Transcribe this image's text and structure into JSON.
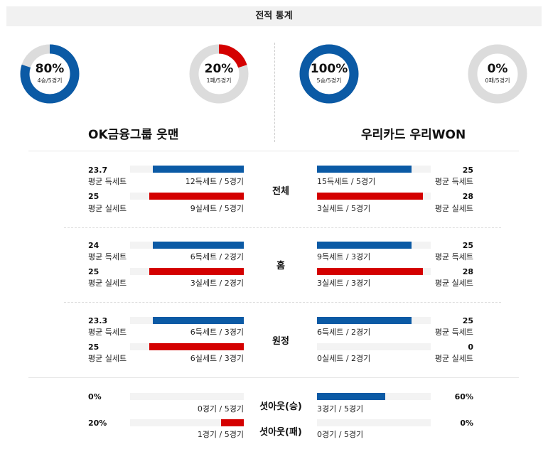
{
  "title": "전적 통계",
  "colors": {
    "blue": "#0b5aa5",
    "red": "#d40000",
    "track": "#dcdcdc"
  },
  "donuts": [
    {
      "pct": "80%",
      "sub": "4승/5경기",
      "fraction": 0.8,
      "color": "#0b5aa5"
    },
    {
      "pct": "20%",
      "sub": "1패/5경기",
      "fraction": 0.2,
      "color": "#d40000"
    },
    {
      "pct": "100%",
      "sub": "5승/5경기",
      "fraction": 1.0,
      "color": "#0b5aa5"
    },
    {
      "pct": "0%",
      "sub": "0패/5경기",
      "fraction": 0.0,
      "color": "#d40000"
    }
  ],
  "teams": {
    "home": "OK금융그룹 읏맨",
    "away": "우리카드 우리WON"
  },
  "sections": [
    {
      "label": "전체",
      "rows": [
        {
          "left_val": "23.7",
          "left_lbl": "평균 득세트",
          "left_cap": "12득세트 / 5경기",
          "left_frac": 0.8,
          "right_val": "25",
          "right_lbl": "평균 득세트",
          "right_cap": "15득세트 / 5경기",
          "right_frac": 0.83
        },
        {
          "left_val": "25",
          "left_lbl": "평균 실세트",
          "left_cap": "9실세트 / 5경기",
          "left_frac": 0.83,
          "right_val": "28",
          "right_lbl": "평균 실세트",
          "right_cap": "3실세트 / 5경기",
          "right_frac": 0.93
        }
      ]
    },
    {
      "label": "홈",
      "rows": [
        {
          "left_val": "24",
          "left_lbl": "평균 득세트",
          "left_cap": "6득세트 / 2경기",
          "left_frac": 0.8,
          "right_val": "25",
          "right_lbl": "평균 득세트",
          "right_cap": "9득세트 / 3경기",
          "right_frac": 0.83
        },
        {
          "left_val": "25",
          "left_lbl": "평균 실세트",
          "left_cap": "3실세트 / 2경기",
          "left_frac": 0.83,
          "right_val": "28",
          "right_lbl": "평균 실세트",
          "right_cap": "3실세트 / 3경기",
          "right_frac": 0.93
        }
      ]
    },
    {
      "label": "원정",
      "rows": [
        {
          "left_val": "23.3",
          "left_lbl": "평균 득세트",
          "left_cap": "6득세트 / 3경기",
          "left_frac": 0.8,
          "right_val": "25",
          "right_lbl": "평균 득세트",
          "right_cap": "6득세트 / 2경기",
          "right_frac": 0.83
        },
        {
          "left_val": "25",
          "left_lbl": "평균 실세트",
          "left_cap": "6실세트 / 3경기",
          "left_frac": 0.83,
          "right_val": "0",
          "right_lbl": "평균 실세트",
          "right_cap": "0실세트 / 2경기",
          "right_frac": 0.0
        }
      ]
    }
  ],
  "setout": [
    {
      "label": "셧아웃(승)",
      "left_val": "0%",
      "left_cap": "0경기 / 5경기",
      "left_frac": 0.0,
      "right_val": "60%",
      "right_cap": "3경기 / 5경기",
      "right_frac": 0.6
    },
    {
      "label": "셧아웃(패)",
      "left_val": "20%",
      "left_cap": "1경기 / 5경기",
      "left_frac": 0.2,
      "right_val": "0%",
      "right_cap": "0경기 / 5경기",
      "right_frac": 0.0
    }
  ]
}
